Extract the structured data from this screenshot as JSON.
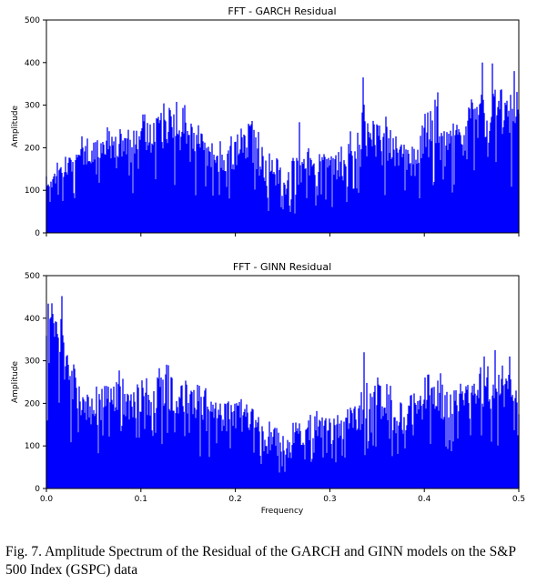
{
  "chart_data": [
    {
      "type": "bar",
      "title": "FFT - GARCH Residual",
      "xlabel": "",
      "ylabel": "Amplitude",
      "xlim": [
        0,
        0.5
      ],
      "ylim": [
        0,
        500
      ],
      "yticks": [
        "0",
        "100",
        "200",
        "300",
        "400",
        "500"
      ],
      "xticks": [],
      "color": "#0000ff",
      "envelope": {
        "x": [
          0.0,
          0.005,
          0.01,
          0.015,
          0.02,
          0.03,
          0.04,
          0.05,
          0.06,
          0.07,
          0.08,
          0.09,
          0.1,
          0.11,
          0.12,
          0.13,
          0.14,
          0.15,
          0.16,
          0.17,
          0.18,
          0.19,
          0.2,
          0.21,
          0.22,
          0.23,
          0.24,
          0.25,
          0.26,
          0.27,
          0.28,
          0.29,
          0.3,
          0.31,
          0.32,
          0.33,
          0.34,
          0.35,
          0.36,
          0.37,
          0.38,
          0.39,
          0.4,
          0.41,
          0.42,
          0.43,
          0.44,
          0.45,
          0.46,
          0.47,
          0.48,
          0.49,
          0.5
        ],
        "peak": [
          140,
          145,
          150,
          165,
          180,
          195,
          210,
          215,
          225,
          230,
          225,
          240,
          250,
          265,
          290,
          300,
          285,
          270,
          240,
          225,
          210,
          195,
          220,
          270,
          250,
          195,
          175,
          165,
          170,
          185,
          195,
          190,
          180,
          200,
          215,
          230,
          310,
          260,
          250,
          230,
          200,
          210,
          270,
          300,
          240,
          255,
          245,
          300,
          330,
          340,
          345,
          320,
          300
        ],
        "floor": [
          90,
          100,
          110,
          120,
          130,
          140,
          150,
          160,
          170,
          175,
          170,
          165,
          170,
          180,
          190,
          195,
          185,
          170,
          150,
          140,
          130,
          125,
          150,
          170,
          140,
          100,
          80,
          75,
          75,
          85,
          100,
          105,
          100,
          115,
          125,
          135,
          170,
          160,
          155,
          140,
          120,
          125,
          165,
          180,
          150,
          160,
          150,
          180,
          195,
          205,
          210,
          195,
          180
        ],
        "spikes": [
          [
            0.335,
            365
          ],
          [
            0.461,
            400
          ],
          [
            0.472,
            398
          ],
          [
            0.414,
            330
          ],
          [
            0.495,
            380
          ],
          [
            0.268,
            260
          ]
        ]
      }
    },
    {
      "type": "bar",
      "title": "FFT - GINN Residual",
      "xlabel": "Frequency",
      "ylabel": "Amplitude",
      "xlim": [
        0,
        0.5
      ],
      "ylim": [
        0,
        500
      ],
      "yticks": [
        "0",
        "100",
        "200",
        "300",
        "400",
        "500"
      ],
      "xticks": [
        "0.0",
        "0.1",
        "0.2",
        "0.3",
        "0.4",
        "0.5"
      ],
      "color": "#0000ff",
      "envelope": {
        "x": [
          0.0,
          0.005,
          0.01,
          0.015,
          0.02,
          0.025,
          0.03,
          0.04,
          0.05,
          0.06,
          0.07,
          0.08,
          0.09,
          0.1,
          0.11,
          0.12,
          0.13,
          0.14,
          0.15,
          0.16,
          0.17,
          0.18,
          0.19,
          0.2,
          0.21,
          0.22,
          0.23,
          0.24,
          0.25,
          0.26,
          0.27,
          0.28,
          0.29,
          0.3,
          0.31,
          0.32,
          0.33,
          0.34,
          0.35,
          0.36,
          0.37,
          0.38,
          0.39,
          0.4,
          0.41,
          0.42,
          0.43,
          0.44,
          0.45,
          0.46,
          0.47,
          0.48,
          0.49,
          0.5
        ],
        "peak": [
          410,
          420,
          410,
          390,
          330,
          300,
          270,
          230,
          220,
          240,
          260,
          255,
          235,
          240,
          250,
          265,
          270,
          265,
          245,
          225,
          215,
          205,
          205,
          210,
          210,
          170,
          150,
          140,
          130,
          140,
          160,
          180,
          175,
          165,
          175,
          190,
          200,
          240,
          270,
          235,
          215,
          195,
          210,
          240,
          260,
          245,
          240,
          230,
          260,
          280,
          290,
          280,
          260,
          240
        ],
        "floor": [
          280,
          300,
          320,
          300,
          240,
          200,
          170,
          150,
          140,
          155,
          170,
          165,
          150,
          155,
          160,
          170,
          175,
          170,
          155,
          140,
          130,
          125,
          125,
          130,
          130,
          100,
          80,
          70,
          65,
          70,
          90,
          105,
          100,
          95,
          105,
          115,
          120,
          145,
          165,
          140,
          125,
          115,
          125,
          150,
          165,
          155,
          150,
          145,
          165,
          180,
          185,
          175,
          160,
          145
        ],
        "spikes": [
          [
            0.016,
            452
          ],
          [
            0.006,
            435
          ],
          [
            0.336,
            320
          ],
          [
            0.463,
            310
          ],
          [
            0.475,
            325
          ],
          [
            0.49,
            310
          ]
        ]
      }
    }
  ],
  "caption": "Fig. 7.  Amplitude Spectrum of the Residual of the GARCH and GINN models on the S&P 500 Index (GSPC) data"
}
